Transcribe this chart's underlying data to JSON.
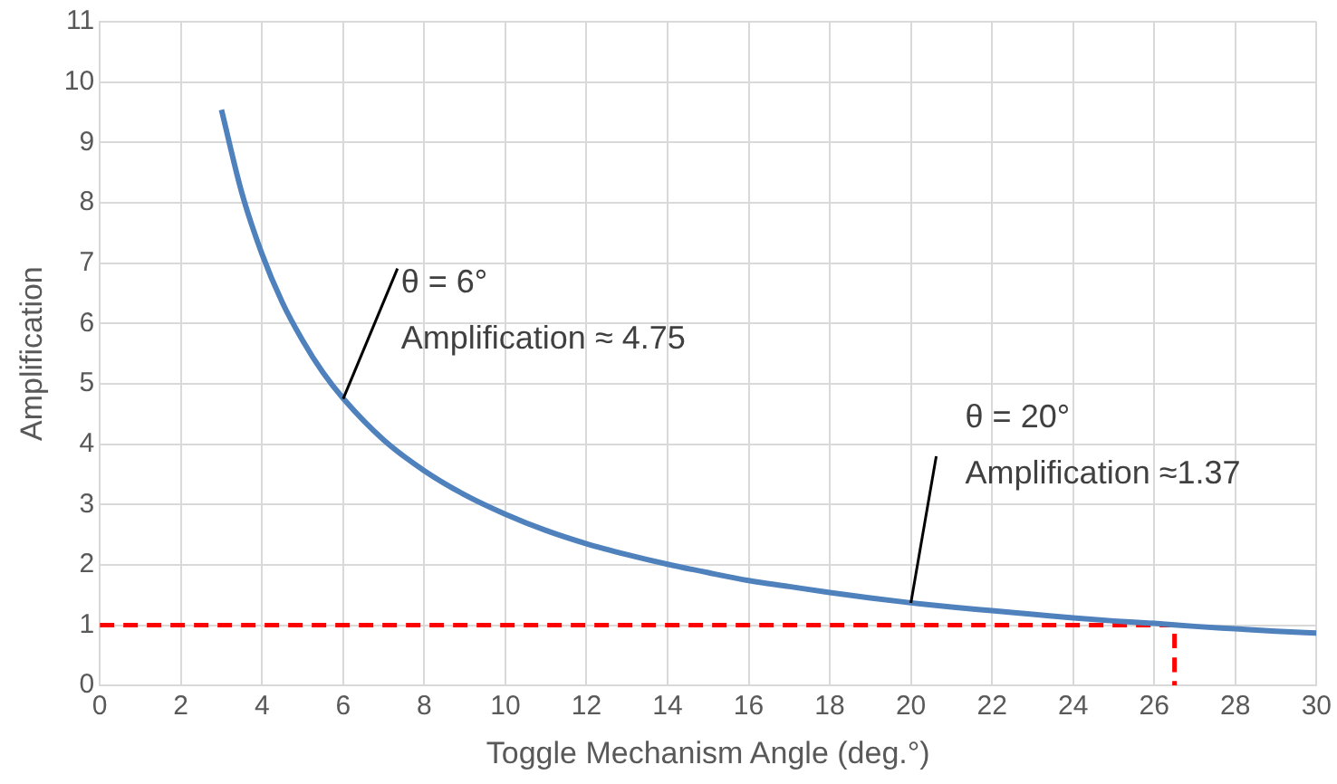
{
  "chart_data": {
    "type": "line",
    "xlabel": "Toggle Mechanism Angle (deg.°)",
    "ylabel": "Amplification",
    "xlim": [
      0,
      30
    ],
    "xticks": [
      0,
      2,
      4,
      6,
      8,
      10,
      12,
      14,
      16,
      18,
      20,
      22,
      24,
      26,
      28,
      30
    ],
    "ylim": [
      0,
      11
    ],
    "yticks": [
      0,
      1,
      2,
      3,
      4,
      5,
      6,
      7,
      8,
      9,
      10,
      11
    ],
    "grid": true,
    "legend": false,
    "marker": "none",
    "series": [
      {
        "color": "#4f81bd",
        "line_style": "solid",
        "x": [
          3,
          3.5,
          4,
          4.5,
          5,
          5.5,
          6,
          7,
          8,
          9,
          10,
          11,
          12,
          13,
          14,
          15,
          16,
          17,
          18,
          19,
          20,
          21,
          22,
          23,
          24,
          25,
          26,
          27,
          28,
          29,
          30
        ],
        "values": [
          9.54,
          8.17,
          7.15,
          6.35,
          5.72,
          5.19,
          4.76,
          4.07,
          3.56,
          3.16,
          2.84,
          2.57,
          2.35,
          2.17,
          2.01,
          1.87,
          1.74,
          1.64,
          1.54,
          1.45,
          1.37,
          1.3,
          1.24,
          1.18,
          1.12,
          1.07,
          1.03,
          0.98,
          0.94,
          0.9,
          0.87
        ]
      },
      {
        "color": "#ff0000",
        "line_style": "dashed",
        "x": [
          0,
          26.5,
          26.5
        ],
        "values": [
          1,
          1,
          0
        ]
      }
    ],
    "annotations": [
      {
        "text": "θ = 6°\nAmplification ≈ 4.75",
        "x": 6,
        "y": 4.75
      },
      {
        "text": "θ = 20°\nAmplification ≈1.37",
        "x": 20,
        "y": 1.37
      }
    ]
  }
}
